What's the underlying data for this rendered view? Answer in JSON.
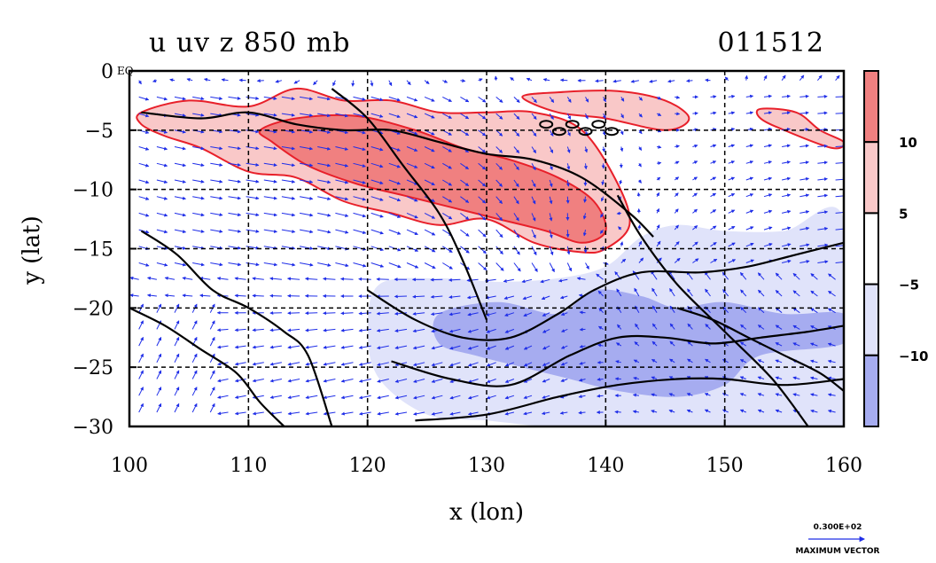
{
  "chart_data": {
    "type": "contour",
    "title": "u uv z 850 mb",
    "date_label": "011512",
    "xlabel": "x (lon)",
    "ylabel": "y (lat)",
    "xlim": [
      100,
      160
    ],
    "ylim": [
      -30,
      0
    ],
    "xticks": [
      100,
      110,
      120,
      130,
      140,
      150,
      160
    ],
    "yticks": [
      0,
      -5,
      -10,
      -15,
      -20,
      -25,
      -30
    ],
    "xtick_labels": [
      "100",
      "110",
      "120",
      "130",
      "140",
      "150",
      "160"
    ],
    "ytick_labels": [
      "0",
      "−5",
      "−10",
      "−15",
      "−20",
      "−25",
      "−30"
    ],
    "eq_label": "EQ",
    "grid": true,
    "colorbar": {
      "levels": [
        10,
        5,
        -5,
        -10
      ],
      "labels": [
        "10",
        "5",
        "−5",
        "−10"
      ],
      "bands": [
        {
          "range": "above 10",
          "color": "#f08080"
        },
        {
          "range": "5 to 10",
          "color": "#f9c8c8"
        },
        {
          "range": "-5 to 5",
          "color": "#ffffff"
        },
        {
          "range": "-10 to -5",
          "color": "#e0e3fa"
        },
        {
          "range": "below -10",
          "color": "#a6acf0"
        }
      ]
    },
    "shaded_regions": [
      {
        "name": "westerly",
        "level": 5,
        "lon": [
          101,
          105,
          110,
          114,
          118,
          122,
          126,
          130,
          134,
          138,
          141,
          142,
          140,
          138,
          134,
          130,
          126,
          122,
          118,
          114,
          110,
          106,
          103,
          101
        ],
        "lat": [
          -3.5,
          -2.5,
          -3,
          -1.5,
          -2.5,
          -2.5,
          -3.5,
          -3.5,
          -3.5,
          -5,
          -9.5,
          -13,
          -15,
          -15.3,
          -14.5,
          -12.5,
          -13,
          -12,
          -11,
          -9,
          -8.5,
          -6.5,
          -5.5,
          -4.5
        ]
      },
      {
        "name": "westerly",
        "level": 5,
        "lon": [
          133,
          136,
          141,
          145,
          147,
          145,
          140,
          136
        ],
        "lat": [
          -2.2,
          -1.8,
          -1.7,
          -2.5,
          -4,
          -5,
          -4,
          -3.5
        ]
      },
      {
        "name": "westerly",
        "level": 5,
        "lon": [
          153,
          156,
          158,
          160,
          159,
          155,
          153
        ],
        "lat": [
          -3.2,
          -3.5,
          -5,
          -6,
          -6.5,
          -5,
          -4
        ]
      },
      {
        "name": "westerly",
        "level": 10,
        "lon": [
          111,
          114,
          119,
          124,
          128,
          132,
          136,
          139,
          140,
          138,
          135,
          131,
          127,
          123,
          119,
          115,
          112
        ],
        "lat": [
          -5,
          -4,
          -3.8,
          -5,
          -6.5,
          -7.5,
          -9,
          -11,
          -13.5,
          -14.5,
          -13.5,
          -12.5,
          -11.5,
          -10.5,
          -9.5,
          -8,
          -6
        ]
      },
      {
        "name": "easterly",
        "level": -5,
        "lon": [
          121,
          126,
          131,
          136,
          140,
          143,
          146,
          150,
          155,
          160,
          160,
          155,
          150,
          145,
          140,
          135,
          130,
          125,
          121,
          120
        ],
        "lat": [
          -18,
          -17.5,
          -17.8,
          -17.5,
          -16.5,
          -14,
          -13,
          -13.5,
          -13.5,
          -12.5,
          -30,
          -30,
          -30,
          -30,
          -30,
          -30,
          -29.5,
          -29,
          -26,
          -22
        ]
      },
      {
        "name": "easterly",
        "level": -10,
        "lon": [
          126,
          131,
          136,
          139,
          143,
          146,
          150,
          155,
          160,
          160,
          153,
          150,
          146,
          141,
          137,
          133,
          129,
          126
        ],
        "lat": [
          -20.5,
          -19.5,
          -20.5,
          -18.5,
          -19,
          -20,
          -19.5,
          -20.5,
          -20.5,
          -23,
          -24,
          -26.5,
          -27.5,
          -27,
          -26,
          -25,
          -24,
          -23
        ]
      }
    ],
    "series": [
      {
        "level": 0,
        "lon": [
          101,
          106,
          110,
          114,
          118,
          122,
          126,
          130,
          134,
          138,
          142,
          144
        ],
        "lat": [
          -3.5,
          -4,
          -3.5,
          -4.5,
          -5,
          -5,
          -6,
          -7,
          -7.5,
          -9,
          -12,
          -14
        ]
      },
      {
        "level": 0,
        "lon": [
          101,
          104,
          107,
          110,
          113,
          115,
          117
        ],
        "lat": [
          -13.5,
          -15.5,
          -18.5,
          -20,
          -22,
          -24,
          -30
        ]
      },
      {
        "level": 0,
        "lon": [
          100,
          103,
          106,
          109,
          111,
          113
        ],
        "lat": [
          -20,
          -21.5,
          -23.5,
          -25.5,
          -28,
          -30
        ]
      },
      {
        "level": 0,
        "lon": [
          120,
          124,
          128,
          132,
          136,
          139,
          143,
          148,
          152,
          156,
          160
        ],
        "lat": [
          -18.5,
          -21,
          -22.5,
          -22.5,
          -20.5,
          -18.5,
          -17,
          -17,
          -16.5,
          -15.5,
          -14.5
        ]
      },
      {
        "level": 0,
        "lon": [
          122,
          127,
          132,
          137,
          141,
          145,
          149,
          153,
          157,
          160
        ],
        "lat": [
          -24.5,
          -26,
          -26.5,
          -24,
          -22.5,
          -22.5,
          -23,
          -22.5,
          -22,
          -21.5
        ]
      },
      {
        "level": 0,
        "lon": [
          124,
          130,
          136,
          141,
          146,
          150,
          155,
          160
        ],
        "lat": [
          -29.5,
          -29,
          -27.5,
          -26.5,
          -26,
          -26,
          -26.5,
          -26
        ]
      },
      {
        "level": 0,
        "lon": [
          117,
          120,
          123,
          126,
          128,
          130
        ],
        "lat": [
          -1.5,
          -4,
          -8,
          -12,
          -16,
          -21
        ]
      },
      {
        "level": 0,
        "lon": [
          141,
          143,
          146,
          150,
          154,
          157
        ],
        "lat": [
          -10.5,
          -14,
          -18,
          -22,
          -26,
          -30
        ]
      },
      {
        "level": 0,
        "lon": [
          146,
          149,
          152,
          155,
          158,
          160
        ],
        "lat": [
          -20,
          -21,
          -22.5,
          -24,
          -25.5,
          -27
        ]
      }
    ],
    "vectors": {
      "name": "uv wind vectors",
      "reference_vector": "0.300E+02",
      "reference_label": "MAXIMUM VECTOR"
    }
  }
}
